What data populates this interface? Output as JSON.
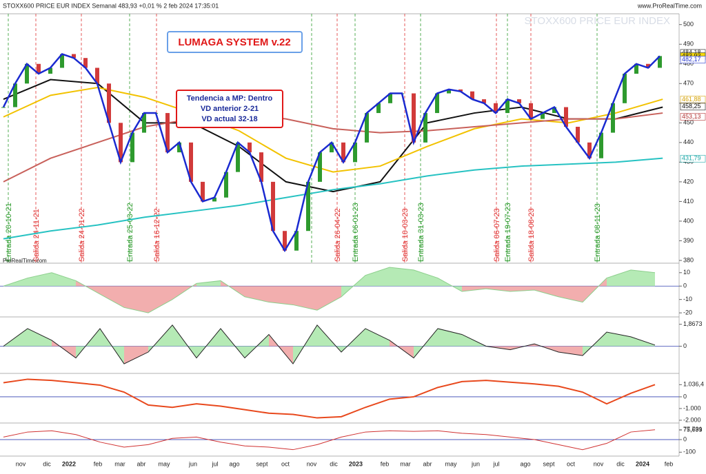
{
  "header": {
    "left": "STOXX600 PRICE EUR INDEX Semanal 483,93 +0,01 % 2 feb 2024 17:35:01",
    "right": "www.ProRealTime.com",
    "watermark": "STOXX600 PRICE EUR INDEX",
    "brand": "ProRealTime.com"
  },
  "title_box": "LUMAGA SYSTEM v.22",
  "info_box": [
    "Tendencia a MP: Dentro",
    "VD anterior 2-21",
    "VD actual 32-18"
  ],
  "signals": [
    "Entrada 20-10-21",
    "Salida 24-11-21",
    "Salida 24-01-22",
    "Entrada 25-03-22",
    "Salida 16-12-22",
    "Salida 26-04-22",
    "Entrada 06-01-23",
    "Salida 10-03-23",
    "Entrada 31-03-23",
    "Salida 06-07-23",
    "Entrada 19-07-23",
    "Salida 18-08-23",
    "Entrada 08-11-23"
  ],
  "months": [
    "nov",
    "dic",
    "2022",
    "feb",
    "mar",
    "abr",
    "may",
    "jun",
    "jul",
    "ago",
    "sept",
    "oct",
    "nov",
    "dic",
    "2023",
    "feb",
    "mar",
    "abr",
    "may",
    "jun",
    "jul",
    "ago",
    "sept",
    "oct",
    "nov",
    "dic",
    "2024",
    "feb"
  ],
  "chart_data": {
    "type": "line",
    "ylim": [
      378.6,
      505.5
    ],
    "yticks": [
      380,
      390,
      400,
      410,
      420,
      430,
      440,
      450,
      460,
      470,
      480,
      490,
      500
    ],
    "price_labels": [
      {
        "value": 484.18,
        "label": "484,18",
        "color": "#222"
      },
      {
        "value": 483.93,
        "label": "483,93",
        "color": "#222",
        "box": "#f5d90a"
      },
      {
        "value": 482.17,
        "label": "482,17",
        "color": "#2233cc"
      },
      {
        "value": 461.88,
        "label": "461,88",
        "color": "#d4a000"
      },
      {
        "value": 458.25,
        "label": "458,25",
        "color": "#111"
      },
      {
        "value": 453.13,
        "label": "453,13",
        "color": "#b03030"
      },
      {
        "value": 431.79,
        "label": "431,79",
        "color": "#1aa7a7"
      }
    ],
    "price": {
      "name": "price",
      "color": "#2e9a2e",
      "values": [
        458,
        470,
        480,
        475,
        478,
        485,
        483,
        478,
        470,
        450,
        430,
        445,
        455,
        455,
        435,
        440,
        420,
        410,
        412,
        425,
        440,
        435,
        420,
        395,
        385,
        395,
        420,
        435,
        440,
        430,
        440,
        455,
        460,
        465,
        465,
        440,
        455,
        465,
        467,
        466,
        462,
        460,
        455,
        462,
        460,
        452,
        455,
        458,
        448,
        440,
        432,
        445,
        460,
        475,
        480,
        478,
        484
      ]
    },
    "series": [
      {
        "name": "black",
        "color": "#111",
        "values": [
          462,
          472,
          470,
          450,
          450,
          438,
          420,
          415,
          420,
          450,
          455,
          458,
          452,
          452,
          458
        ]
      },
      {
        "name": "yellow",
        "color": "#f2c200",
        "values": [
          453,
          464,
          468,
          463,
          455,
          446,
          432,
          425,
          428,
          438,
          447,
          452,
          450,
          455,
          462
        ]
      },
      {
        "name": "brown",
        "color": "#c8605a",
        "values": [
          420,
          432,
          440,
          448,
          452,
          455,
          452,
          447,
          445,
          446,
          448,
          450,
          452,
          452,
          455
        ]
      },
      {
        "name": "teal",
        "color": "#26c2c2",
        "values": [
          391,
          395,
          398,
          402,
          405,
          408,
          412,
          416,
          419,
          423,
          426,
          428,
          429,
          430,
          432
        ]
      }
    ],
    "panels": [
      {
        "ylim": [
          -22,
          14
        ],
        "yticks": [
          10,
          0,
          -10,
          -20
        ],
        "values": [
          0,
          6,
          10,
          4,
          -6,
          -16,
          -20,
          -10,
          2,
          4,
          -8,
          -12,
          -14,
          -18,
          -8,
          8,
          14,
          12,
          6,
          -4,
          -2,
          -4,
          -3,
          -8,
          -12,
          6,
          12,
          10
        ]
      },
      {
        "ylim": [
          -2.2,
          2.2
        ],
        "yticks": [
          {
            "value": 1.8673,
            "label": "1,8673"
          },
          0
        ],
        "values": [
          0,
          1.5,
          0.5,
          -1,
          1.5,
          -1.5,
          -0.5,
          1.8,
          -1,
          1.5,
          -1,
          1,
          -1.5,
          1.8,
          -0.5,
          1.5,
          0.5,
          -1,
          1.5,
          1,
          0,
          -0.3,
          0.2,
          -0.5,
          -0.8,
          1.2,
          0.8,
          0.1
        ]
      },
      {
        "ylim": [
          -2120,
          1820
        ],
        "yticks": [
          {
            "value": 1036.4,
            "label": "1.036,4"
          },
          0,
          {
            "value": -1000,
            "label": "-1.000"
          },
          {
            "value": -2000,
            "label": "-2.000"
          }
        ],
        "values": [
          1200,
          1500,
          1400,
          1200,
          1000,
          400,
          -700,
          -900,
          -600,
          -800,
          -1100,
          -1400,
          -1500,
          -1800,
          -1700,
          -900,
          -200,
          0,
          800,
          1300,
          1400,
          1250,
          1100,
          900,
          400,
          -600,
          300,
          1036
        ]
      },
      {
        "ylim": [
          -120,
          115
        ],
        "yticks": [
          {
            "value": 77.731,
            "label": "77,731"
          },
          {
            "value": 75.699,
            "label": "75,699"
          },
          0,
          -100
        ],
        "values": [
          20,
          60,
          70,
          40,
          -20,
          -60,
          -40,
          10,
          20,
          -20,
          -50,
          -60,
          -80,
          -40,
          20,
          60,
          70,
          65,
          70,
          50,
          40,
          20,
          0,
          -40,
          -80,
          -30,
          60,
          78
        ]
      }
    ]
  }
}
